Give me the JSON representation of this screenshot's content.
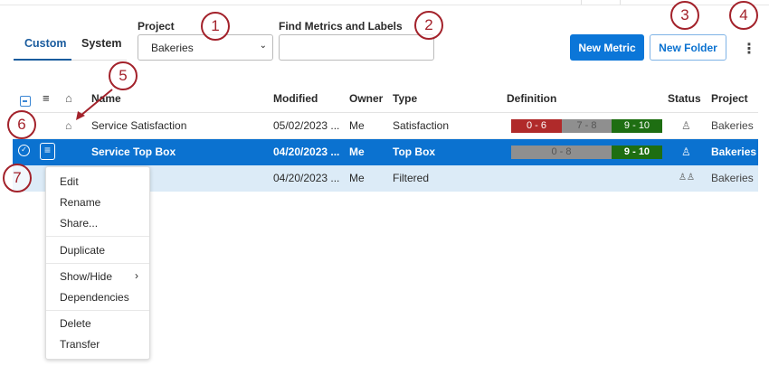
{
  "tabs": [
    {
      "label": "Custom",
      "active": true
    },
    {
      "label": "System"
    }
  ],
  "project": {
    "label": "Project",
    "value": "Bakeries"
  },
  "search": {
    "label": "Find Metrics and Labels",
    "value": "",
    "placeholder": ""
  },
  "toolbar": {
    "new_metric": "New Metric",
    "new_folder": "New Folder"
  },
  "columns": {
    "name": "Name",
    "modified": "Modified",
    "owner": "Owner",
    "type": "Type",
    "definition": "Definition",
    "status": "Status",
    "project": "Project"
  },
  "rows": [
    {
      "name": "Service Satisfaction",
      "modified": "05/02/2023 ...",
      "owner": "Me",
      "type": "Satisfaction",
      "definition": [
        "0 - 6",
        "7 - 8",
        "9 - 10"
      ],
      "status": "user-icon",
      "project": "Bakeries"
    },
    {
      "name": "Service Top Box",
      "modified": "04/20/2023 ...",
      "owner": "Me",
      "type": "Top Box",
      "definition": [
        "0 - 8",
        "9 - 10"
      ],
      "status": "user-icon",
      "project": "Bakeries",
      "selected": true
    },
    {
      "name": "",
      "modified": "04/20/2023 ...",
      "owner": "Me",
      "type": "Filtered",
      "status": "users-icon",
      "project": "Bakeries"
    }
  ],
  "menu": [
    "Edit",
    "Rename",
    "Share...",
    "Duplicate",
    "Show/Hide",
    "Dependencies",
    "Delete",
    "Transfer"
  ],
  "annotations": [
    "1",
    "2",
    "3",
    "4",
    "5",
    "6",
    "7"
  ],
  "colors": {
    "accent": "#0b72d0",
    "selected_row": "#0b72d0",
    "hover_row": "#dcebf7",
    "detractor": "#b02a2a",
    "passive": "#8f8f8f",
    "promoter": "#1e6e12",
    "annotation": "#a3222b"
  }
}
